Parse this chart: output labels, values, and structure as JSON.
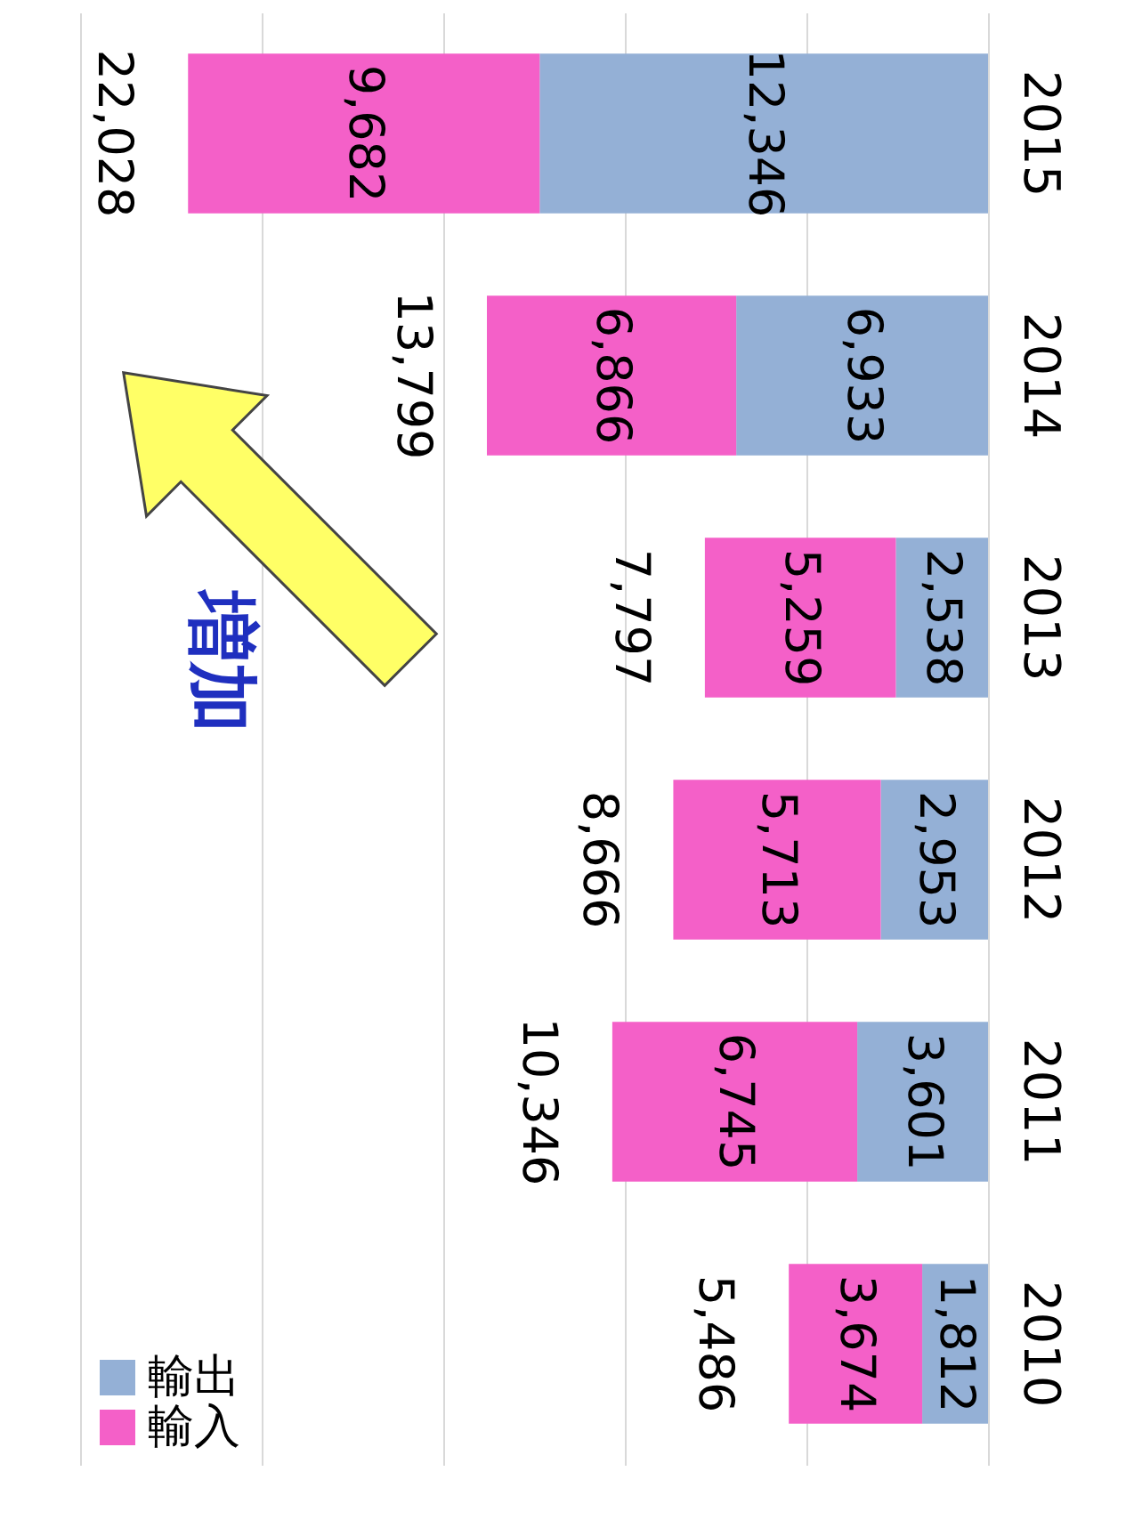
{
  "chart_data": {
    "type": "bar",
    "orientation": "horizontal",
    "stacked": true,
    "categories": [
      "2015",
      "2014",
      "2013",
      "2012",
      "2011",
      "2010"
    ],
    "series": [
      {
        "name": "輸出",
        "color": "#94b0d6",
        "values": [
          12346,
          6933,
          2538,
          2953,
          3601,
          1812
        ],
        "value_labels": [
          "12,346",
          "6,933",
          "2,538",
          "2,953",
          "3,601",
          "1,812"
        ]
      },
      {
        "name": "輸入",
        "color": "#f460c8",
        "values": [
          9682,
          6866,
          5259,
          5713,
          6745,
          3674
        ],
        "value_labels": [
          "9,682",
          "6,866",
          "5,259",
          "5,713",
          "6,745",
          "3,674"
        ]
      }
    ],
    "totals": [
      "22,028",
      "13,799",
      "7,797",
      "8,666",
      "10,346",
      "5,486"
    ],
    "xlim": [
      25000,
      0
    ],
    "xticks": [
      {
        "value": 0,
        "label": null
      },
      {
        "value": 5000,
        "label": null
      },
      {
        "value": 10000,
        "label": null
      },
      {
        "value": 15000,
        "label": null
      },
      {
        "value": 20000,
        "label": null
      },
      {
        "value": 25000,
        "label": null
      }
    ],
    "tick_labels": "y",
    "grid": "x",
    "legend": "bottom left",
    "annotations": [
      "増加"
    ]
  }
}
